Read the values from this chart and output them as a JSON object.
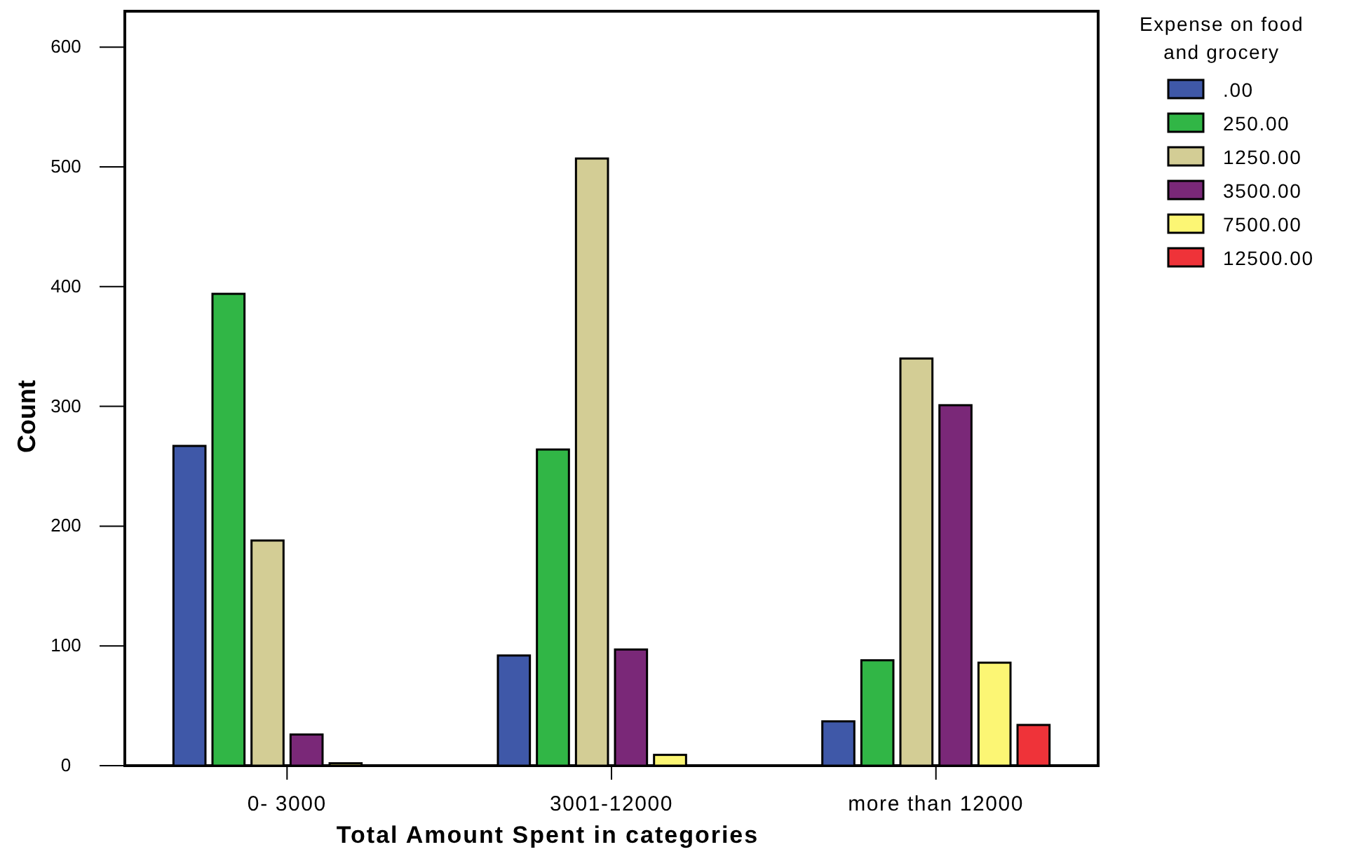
{
  "chart_data": {
    "type": "bar",
    "xlabel": "Total Amount Spent in categories",
    "ylabel": "Count",
    "legend_title": "Expense on food and grocery",
    "legend": "right",
    "categories": [
      "0- 3000",
      "3001-12000",
      "more than 12000"
    ],
    "ylim": [
      0,
      630
    ],
    "yticks": [
      0,
      100,
      200,
      300,
      400,
      500,
      600
    ],
    "series": [
      {
        "name": ".00",
        "color": "#3f58a8",
        "values": [
          267,
          92,
          37
        ]
      },
      {
        "name": "250.00",
        "color": "#31b646",
        "values": [
          394,
          264,
          88
        ]
      },
      {
        "name": "1250.00",
        "color": "#d3cd95",
        "values": [
          188,
          507,
          340
        ]
      },
      {
        "name": "3500.00",
        "color": "#7a2878",
        "values": [
          26,
          97,
          301
        ]
      },
      {
        "name": "7500.00",
        "color": "#fcf674",
        "values": [
          2,
          9,
          86
        ]
      },
      {
        "name": "12500.00",
        "color": "#ef3339",
        "values": [
          null,
          null,
          34
        ]
      }
    ]
  }
}
